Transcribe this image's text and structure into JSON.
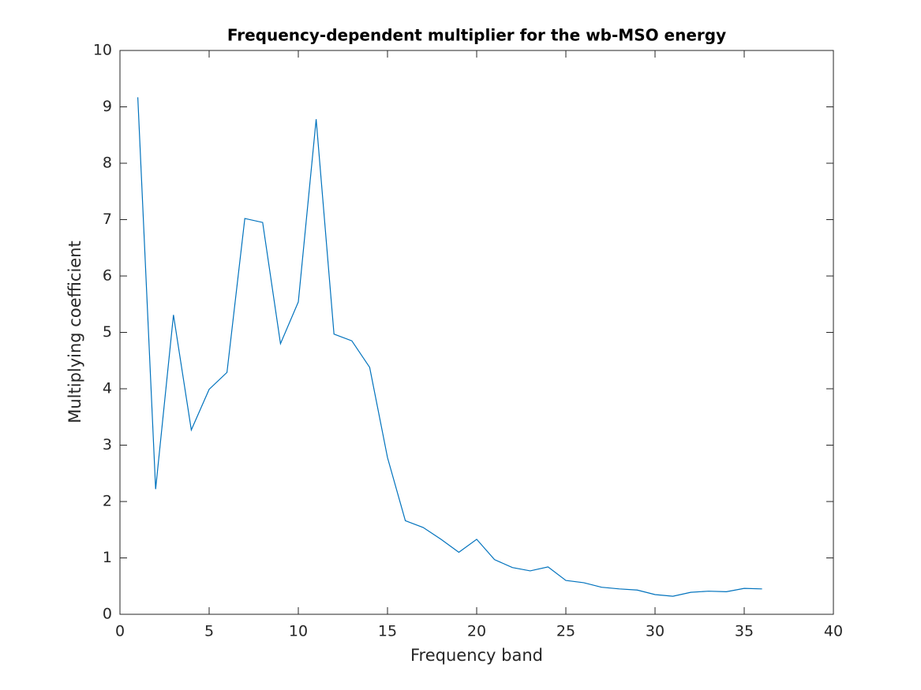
{
  "chart_data": {
    "type": "line",
    "title": "Frequency-dependent multiplier for the wb-MSO energy",
    "xlabel": "Frequency band",
    "ylabel": "Multiplying coefficient",
    "x": [
      1,
      2,
      3,
      4,
      5,
      6,
      7,
      8,
      9,
      10,
      11,
      12,
      13,
      14,
      15,
      16,
      17,
      18,
      19,
      20,
      21,
      22,
      23,
      24,
      25,
      26,
      27,
      28,
      29,
      30,
      31,
      32,
      33,
      34,
      35,
      36
    ],
    "series": [
      {
        "color": "#0072bd",
        "values": [
          9.17,
          2.22,
          5.31,
          3.27,
          3.99,
          4.29,
          7.02,
          6.95,
          4.8,
          5.54,
          8.78,
          4.97,
          4.85,
          4.38,
          2.78,
          1.66,
          1.54,
          1.33,
          1.1,
          1.33,
          0.97,
          0.83,
          0.77,
          0.84,
          0.6,
          0.56,
          0.48,
          0.45,
          0.43,
          0.35,
          0.32,
          0.39,
          0.41,
          0.4,
          0.46,
          0.45
        ]
      }
    ],
    "xlim": [
      0,
      40
    ],
    "xticks": [
      0,
      5,
      10,
      15,
      20,
      25,
      30,
      35,
      40
    ],
    "ylim": [
      0,
      10
    ],
    "yticks": [
      0,
      1,
      2,
      3,
      4,
      5,
      6,
      7,
      8,
      9,
      10
    ],
    "grid": false
  }
}
